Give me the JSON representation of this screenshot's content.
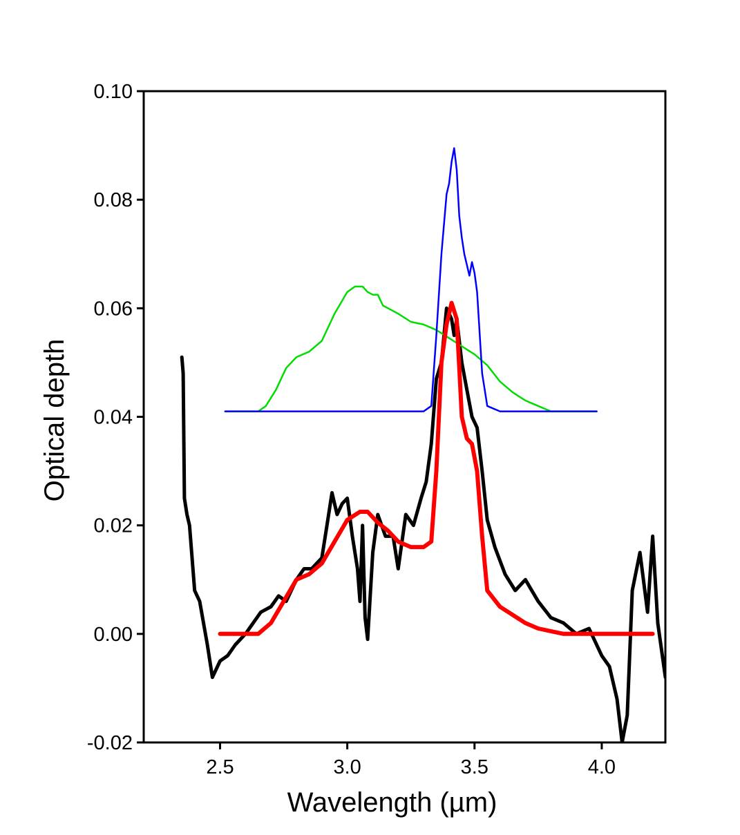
{
  "chart_data": {
    "type": "line",
    "title": "",
    "xlabel": "Wavelength (µm)",
    "ylabel": "Optical depth",
    "xlim": [
      2.2,
      4.25
    ],
    "ylim": [
      -0.02,
      0.1
    ],
    "x_ticks": [
      2.5,
      3.0,
      3.5,
      4.0
    ],
    "x_tick_labels": [
      "2.5",
      "3.0",
      "3.5",
      "4.0"
    ],
    "y_ticks": [
      -0.02,
      0.0,
      0.02,
      0.04,
      0.06,
      0.08,
      0.1
    ],
    "y_tick_labels": [
      "-0.02",
      "0.00",
      "0.02",
      "0.04",
      "0.06",
      "0.08",
      "0.10"
    ],
    "grid": false,
    "legend": "none",
    "series": [
      {
        "color": "#000000",
        "style": "noisy observed spectrum",
        "x": [
          2.35,
          2.355,
          2.36,
          2.37,
          2.38,
          2.4,
          2.42,
          2.45,
          2.47,
          2.5,
          2.53,
          2.56,
          2.6,
          2.63,
          2.66,
          2.7,
          2.73,
          2.76,
          2.8,
          2.83,
          2.86,
          2.9,
          2.92,
          2.94,
          2.96,
          2.98,
          3.0,
          3.02,
          3.04,
          3.05,
          3.06,
          3.07,
          3.08,
          3.1,
          3.12,
          3.15,
          3.18,
          3.2,
          3.23,
          3.26,
          3.29,
          3.31,
          3.33,
          3.35,
          3.37,
          3.39,
          3.41,
          3.42,
          3.43,
          3.45,
          3.47,
          3.49,
          3.51,
          3.53,
          3.55,
          3.58,
          3.62,
          3.66,
          3.7,
          3.75,
          3.8,
          3.85,
          3.9,
          3.95,
          4.0,
          4.03,
          4.06,
          4.08,
          4.1,
          4.12,
          4.15,
          4.18,
          4.2,
          4.22,
          4.25
        ],
        "y": [
          0.051,
          0.048,
          0.025,
          0.022,
          0.02,
          0.008,
          0.006,
          -0.002,
          -0.008,
          -0.005,
          -0.004,
          -0.002,
          0.0,
          0.002,
          0.004,
          0.005,
          0.007,
          0.006,
          0.01,
          0.012,
          0.012,
          0.014,
          0.02,
          0.026,
          0.022,
          0.024,
          0.025,
          0.018,
          0.012,
          0.006,
          0.02,
          0.003,
          -0.001,
          0.015,
          0.022,
          0.018,
          0.018,
          0.012,
          0.022,
          0.02,
          0.025,
          0.028,
          0.035,
          0.047,
          0.05,
          0.06,
          0.058,
          0.055,
          0.058,
          0.05,
          0.045,
          0.04,
          0.038,
          0.03,
          0.021,
          0.016,
          0.011,
          0.008,
          0.01,
          0.006,
          0.003,
          0.002,
          0.0,
          0.001,
          -0.004,
          -0.006,
          -0.012,
          -0.02,
          -0.015,
          0.008,
          0.015,
          0.004,
          0.018,
          0.002,
          -0.008
        ]
      },
      {
        "color": "#ff0000",
        "style": "thick model fit",
        "x": [
          2.5,
          2.55,
          2.6,
          2.65,
          2.7,
          2.75,
          2.8,
          2.85,
          2.9,
          2.95,
          3.0,
          3.05,
          3.08,
          3.12,
          3.16,
          3.2,
          3.25,
          3.3,
          3.33,
          3.35,
          3.37,
          3.39,
          3.41,
          3.43,
          3.45,
          3.47,
          3.49,
          3.51,
          3.53,
          3.55,
          3.6,
          3.65,
          3.7,
          3.75,
          3.8,
          3.85,
          3.9,
          4.0,
          4.1,
          4.2
        ],
        "y": [
          0.0,
          0.0,
          0.0,
          0.0,
          0.002,
          0.006,
          0.01,
          0.011,
          0.013,
          0.017,
          0.021,
          0.0225,
          0.0225,
          0.0205,
          0.019,
          0.017,
          0.016,
          0.016,
          0.017,
          0.03,
          0.05,
          0.057,
          0.061,
          0.058,
          0.04,
          0.036,
          0.035,
          0.03,
          0.018,
          0.008,
          0.005,
          0.0035,
          0.002,
          0.001,
          0.0005,
          0.0,
          0.0,
          0.0,
          0.0,
          0.0
        ]
      },
      {
        "color": "#00dd00",
        "style": "thin offset component",
        "x": [
          2.52,
          2.65,
          2.68,
          2.72,
          2.76,
          2.8,
          2.85,
          2.9,
          2.95,
          3.0,
          3.03,
          3.06,
          3.08,
          3.1,
          3.12,
          3.14,
          3.16,
          3.2,
          3.25,
          3.3,
          3.35,
          3.4,
          3.45,
          3.5,
          3.55,
          3.6,
          3.65,
          3.7,
          3.75,
          3.8,
          3.85,
          3.9,
          3.95,
          3.98
        ],
        "y": [
          0.041,
          0.041,
          0.042,
          0.045,
          0.049,
          0.051,
          0.052,
          0.054,
          0.059,
          0.063,
          0.064,
          0.064,
          0.063,
          0.0625,
          0.0625,
          0.0605,
          0.06,
          0.059,
          0.0575,
          0.057,
          0.056,
          0.0545,
          0.053,
          0.0515,
          0.0495,
          0.0465,
          0.0445,
          0.043,
          0.042,
          0.041,
          0.041,
          0.041,
          0.041,
          0.041
        ]
      },
      {
        "color": "#0000ff",
        "style": "thin offset component",
        "x": [
          2.52,
          2.8,
          3.0,
          3.2,
          3.3,
          3.33,
          3.35,
          3.37,
          3.39,
          3.4,
          3.41,
          3.42,
          3.43,
          3.44,
          3.45,
          3.46,
          3.47,
          3.48,
          3.49,
          3.5,
          3.51,
          3.53,
          3.55,
          3.6,
          3.7,
          3.8,
          3.9,
          3.98
        ],
        "y": [
          0.041,
          0.041,
          0.041,
          0.041,
          0.041,
          0.042,
          0.055,
          0.07,
          0.081,
          0.083,
          0.087,
          0.0895,
          0.0855,
          0.077,
          0.073,
          0.07,
          0.068,
          0.066,
          0.0685,
          0.0665,
          0.063,
          0.048,
          0.042,
          0.041,
          0.041,
          0.041,
          0.041,
          0.041
        ]
      }
    ]
  }
}
